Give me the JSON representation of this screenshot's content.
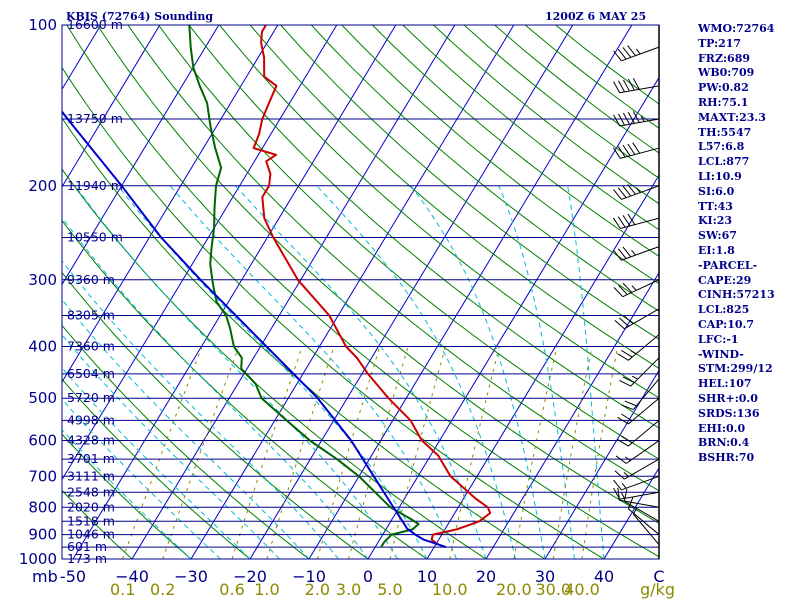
{
  "header": {
    "title": "KBIS (72764) Sounding",
    "time": "1200Z  6 MAY 25"
  },
  "indices": [
    "WMO:72764",
    "TP:217",
    "FRZ:689",
    "WB0:709",
    "PW:0.82",
    "RH:75.1",
    "MAXT:23.3",
    "TH:5547",
    "L57:6.8",
    "LCL:877",
    "LI:10.9",
    "SI:6.0",
    "TT:43",
    "KI:23",
    "SW:67",
    "EI:1.8",
    "-PARCEL-",
    "CAPE:29",
    "CINH:57213",
    "LCL:825",
    "CAP:10.7",
    "LFC:-1",
    "-WIND-",
    "STM:299/12",
    "HEL:107",
    "SHR+:0.0",
    "SRDS:136",
    "EHI:0.0",
    "BRN:0.4",
    "BSHR:70"
  ],
  "colors": {
    "isobar": "#00008b",
    "isotherm": "#0000cd",
    "dry_adiabat": "#008000",
    "moist_adiabat": "#00bcd4",
    "mixing_ratio": "#8b8b00",
    "temperature": "#cc0000",
    "dewpoint": "#006400",
    "parcel": "#0000cd",
    "wind_barb": "#000000"
  },
  "chart_data": {
    "type": "skew-t",
    "xlabel": "C",
    "ylabel": "mb",
    "ylim": [
      1000,
      100
    ],
    "xlim": [
      -50,
      50
    ],
    "pressure_ticks": [
      100,
      200,
      300,
      400,
      500,
      600,
      700,
      800,
      900,
      1000
    ],
    "pressure_tick_labels": [
      "100",
      "200",
      "300",
      "400",
      "500",
      "600",
      "700",
      "800",
      "900",
      "1000"
    ],
    "temperature_ticks": [
      -50,
      -40,
      -30,
      -20,
      -10,
      0,
      10,
      20,
      30,
      40,
      50
    ],
    "temperature_tick_labels": [
      "-50",
      "−40",
      "−30",
      "−20",
      "−10",
      "0",
      "10",
      "20",
      "30",
      "40",
      "C"
    ],
    "mixing_ratio_ticks": [
      0.1,
      0.2,
      0.6,
      1.0,
      2.0,
      3.0,
      5.0,
      10.0,
      20.0,
      30.0,
      40.0
    ],
    "mixing_ratio_labels": [
      "0.1",
      "0.2",
      "0.6",
      "1.0",
      "2.0",
      "3.0",
      "5.0",
      "10.0",
      "20.0",
      "30.0",
      "40.0"
    ],
    "mixing_ratio_unit": "g/kg",
    "heights": [
      {
        "p": 100,
        "label": "16600 m"
      },
      {
        "p": 150,
        "label": "13750 m"
      },
      {
        "p": 200,
        "label": "11940 m"
      },
      {
        "p": 250,
        "label": "10550 m"
      },
      {
        "p": 300,
        "label": "9360 m"
      },
      {
        "p": 350,
        "label": "8305 m"
      },
      {
        "p": 400,
        "label": "7360 m"
      },
      {
        "p": 450,
        "label": "6504 m"
      },
      {
        "p": 500,
        "label": "5720 m"
      },
      {
        "p": 550,
        "label": "4998 m"
      },
      {
        "p": 600,
        "label": "4328 m"
      },
      {
        "p": 650,
        "label": "3701 m"
      },
      {
        "p": 700,
        "label": "3111 m"
      },
      {
        "p": 750,
        "label": "2548 m"
      },
      {
        "p": 800,
        "label": "2020 m"
      },
      {
        "p": 850,
        "label": "1518 m"
      },
      {
        "p": 900,
        "label": "1046 m"
      },
      {
        "p": 950,
        "label": "601 m"
      },
      {
        "p": 1000,
        "label": "173 m"
      }
    ],
    "series": [
      {
        "name": "temperature",
        "points": [
          {
            "p": 940,
            "t": 10.5
          },
          {
            "p": 920,
            "t": 8.8
          },
          {
            "p": 900,
            "t": 8.5
          },
          {
            "p": 880,
            "t": 12.0
          },
          {
            "p": 850,
            "t": 15.0
          },
          {
            "p": 820,
            "t": 16.0
          },
          {
            "p": 800,
            "t": 15.0
          },
          {
            "p": 770,
            "t": 12.0
          },
          {
            "p": 700,
            "t": 5.5
          },
          {
            "p": 640,
            "t": 1.3
          },
          {
            "p": 600,
            "t": -3.0
          },
          {
            "p": 550,
            "t": -7.0
          },
          {
            "p": 500,
            "t": -13.0
          },
          {
            "p": 450,
            "t": -19.0
          },
          {
            "p": 420,
            "t": -22.5
          },
          {
            "p": 400,
            "t": -25.5
          },
          {
            "p": 350,
            "t": -31.5
          },
          {
            "p": 300,
            "t": -40.5
          },
          {
            "p": 250,
            "t": -49.0
          },
          {
            "p": 230,
            "t": -52.5
          },
          {
            "p": 210,
            "t": -55.0
          },
          {
            "p": 200,
            "t": -55.0
          },
          {
            "p": 190,
            "t": -56.0
          },
          {
            "p": 180,
            "t": -58.0
          },
          {
            "p": 175,
            "t": -57.0
          },
          {
            "p": 170,
            "t": -61.5
          },
          {
            "p": 160,
            "t": -62.0
          },
          {
            "p": 150,
            "t": -63.0
          },
          {
            "p": 140,
            "t": -63.5
          },
          {
            "p": 130,
            "t": -64.0
          },
          {
            "p": 125,
            "t": -67.0
          },
          {
            "p": 115,
            "t": -69.0
          },
          {
            "p": 108,
            "t": -71.0
          },
          {
            "p": 103,
            "t": -72.0
          },
          {
            "p": 100,
            "t": -72.0
          }
        ]
      },
      {
        "name": "dewpoint",
        "points": [
          {
            "p": 950,
            "t": 1.0
          },
          {
            "p": 930,
            "t": 1.0
          },
          {
            "p": 900,
            "t": 1.5
          },
          {
            "p": 880,
            "t": 4.5
          },
          {
            "p": 860,
            "t": 5.0
          },
          {
            "p": 840,
            "t": 3.0
          },
          {
            "p": 800,
            "t": -1.5
          },
          {
            "p": 700,
            "t": -10.0
          },
          {
            "p": 650,
            "t": -15.5
          },
          {
            "p": 600,
            "t": -22.0
          },
          {
            "p": 550,
            "t": -28.0
          },
          {
            "p": 500,
            "t": -34.5
          },
          {
            "p": 470,
            "t": -37.0
          },
          {
            "p": 440,
            "t": -41.0
          },
          {
            "p": 420,
            "t": -42.0
          },
          {
            "p": 400,
            "t": -44.5
          },
          {
            "p": 370,
            "t": -47.0
          },
          {
            "p": 350,
            "t": -49.0
          },
          {
            "p": 330,
            "t": -52.0
          },
          {
            "p": 310,
            "t": -54.0
          },
          {
            "p": 300,
            "t": -55.0
          },
          {
            "p": 280,
            "t": -57.0
          },
          {
            "p": 260,
            "t": -58.5
          },
          {
            "p": 240,
            "t": -60.0
          },
          {
            "p": 220,
            "t": -62.0
          },
          {
            "p": 200,
            "t": -64.0
          },
          {
            "p": 185,
            "t": -65.0
          },
          {
            "p": 170,
            "t": -68.0
          },
          {
            "p": 155,
            "t": -71.0
          },
          {
            "p": 140,
            "t": -74.0
          },
          {
            "p": 130,
            "t": -77.0
          },
          {
            "p": 120,
            "t": -80.0
          },
          {
            "p": 110,
            "t": -82.5
          },
          {
            "p": 100,
            "t": -85.0
          }
        ]
      },
      {
        "name": "parcel",
        "points": [
          {
            "p": 950,
            "t": 12.0
          },
          {
            "p": 920,
            "t": 7.5
          },
          {
            "p": 900,
            "t": 5.5
          },
          {
            "p": 877,
            "t": 3.5
          },
          {
            "p": 850,
            "t": 2.0
          },
          {
            "p": 800,
            "t": -1.0
          },
          {
            "p": 700,
            "t": -7.5
          },
          {
            "p": 600,
            "t": -15.0
          },
          {
            "p": 500,
            "t": -25.0
          },
          {
            "p": 400,
            "t": -39.0
          },
          {
            "p": 300,
            "t": -57.0
          },
          {
            "p": 250,
            "t": -68.0
          },
          {
            "p": 200,
            "t": -80.0
          },
          {
            "p": 150,
            "t": -96.0
          },
          {
            "p": 120,
            "t": -108.0
          },
          {
            "p": 110,
            "t": -113.0
          }
        ]
      }
    ],
    "winds": [
      {
        "p": 110,
        "dir": 250,
        "spd": 45
      },
      {
        "p": 130,
        "dir": 260,
        "spd": 50
      },
      {
        "p": 150,
        "dir": 260,
        "spd": 55
      },
      {
        "p": 170,
        "dir": 255,
        "spd": 50
      },
      {
        "p": 200,
        "dir": 250,
        "spd": 45
      },
      {
        "p": 230,
        "dir": 255,
        "spd": 40
      },
      {
        "p": 260,
        "dir": 250,
        "spd": 35
      },
      {
        "p": 300,
        "dir": 245,
        "spd": 35
      },
      {
        "p": 340,
        "dir": 240,
        "spd": 30
      },
      {
        "p": 380,
        "dir": 230,
        "spd": 25
      },
      {
        "p": 420,
        "dir": 225,
        "spd": 25
      },
      {
        "p": 460,
        "dir": 220,
        "spd": 20
      },
      {
        "p": 500,
        "dir": 230,
        "spd": 20
      },
      {
        "p": 550,
        "dir": 230,
        "spd": 20
      },
      {
        "p": 600,
        "dir": 235,
        "spd": 15
      },
      {
        "p": 650,
        "dir": 240,
        "spd": 15
      },
      {
        "p": 700,
        "dir": 250,
        "spd": 15
      },
      {
        "p": 750,
        "dir": 260,
        "spd": 15
      },
      {
        "p": 800,
        "dir": 280,
        "spd": 10
      },
      {
        "p": 850,
        "dir": 300,
        "spd": 10
      },
      {
        "p": 900,
        "dir": 310,
        "spd": 10
      },
      {
        "p": 940,
        "dir": 320,
        "spd": 5
      }
    ]
  }
}
